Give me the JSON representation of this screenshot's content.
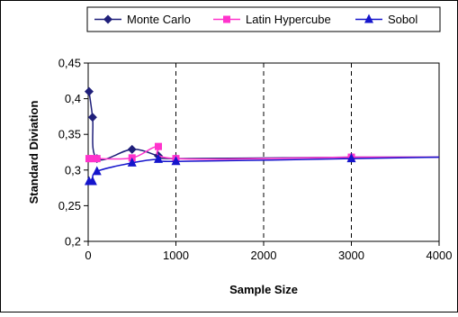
{
  "chart_data": {
    "type": "line",
    "title": "",
    "xlabel": "Sample Size",
    "ylabel": "Standard Diviation",
    "xlim": [
      0,
      4000
    ],
    "ylim": [
      0.2,
      0.45
    ],
    "x_ticks": [
      0,
      1000,
      2000,
      3000,
      4000
    ],
    "x_tick_labels": [
      "0",
      "1000",
      "2000",
      "3000",
      "4000"
    ],
    "y_ticks": [
      0.2,
      0.25,
      0.3,
      0.35,
      0.4,
      0.45
    ],
    "y_tick_labels": [
      "0,2",
      "0,25",
      "0,3",
      "0,35",
      "0,4",
      "0,45"
    ],
    "grid": "vertical-dashed",
    "legend_position": "top",
    "series": [
      {
        "name": "Monte Carlo",
        "color": "#1f1f7a",
        "marker": "diamond",
        "x": [
          10,
          50,
          100,
          500,
          800,
          1000,
          3000,
          4000
        ],
        "y": [
          0.41,
          0.374,
          0.316,
          0.329,
          0.32,
          0.316,
          0.318,
          0.318
        ]
      },
      {
        "name": "Latin Hypercube",
        "color": "#ff33cc",
        "marker": "square",
        "x": [
          10,
          50,
          100,
          500,
          800,
          1000,
          3000,
          4000
        ],
        "y": [
          0.316,
          0.316,
          0.316,
          0.317,
          0.333,
          0.316,
          0.318,
          0.318
        ]
      },
      {
        "name": "Sobol",
        "color": "#1515cc",
        "marker": "triangle",
        "x": [
          10,
          50,
          100,
          500,
          800,
          1000,
          3000,
          4000
        ],
        "y": [
          0.284,
          0.284,
          0.298,
          0.31,
          0.315,
          0.312,
          0.316,
          0.318
        ]
      }
    ]
  }
}
